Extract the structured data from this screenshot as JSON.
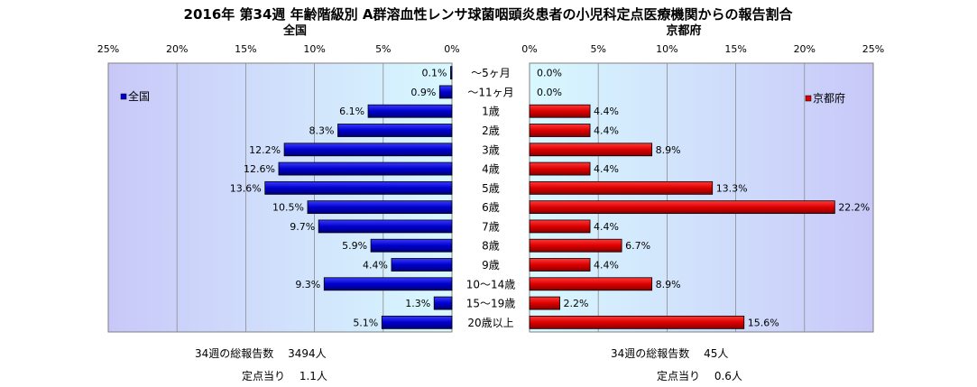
{
  "chart_data": {
    "type": "bar",
    "title": "2016年 第34週 年齢階級別 A群溶血性レンサ球菌咽頭炎患者の小児科定点医療機関からの報告割合",
    "categories": [
      "～5ヶ月",
      "～11ヶ月",
      "1歳",
      "2歳",
      "3歳",
      "4歳",
      "5歳",
      "6歳",
      "7歳",
      "8歳",
      "9歳",
      "10～14歳",
      "15～19歳",
      "20歳以上"
    ],
    "xlim": [
      0,
      25
    ],
    "ticks": [
      "0%",
      "5%",
      "10%",
      "15%",
      "20%",
      "25%"
    ],
    "grid": true,
    "colors": {
      "national": "#0000cc",
      "kyoto": "#dd0000"
    },
    "series": [
      {
        "name": "全国",
        "subtitle": "全国",
        "legend": "全国",
        "values": [
          0.1,
          0.9,
          6.1,
          8.3,
          12.2,
          12.6,
          13.6,
          10.5,
          9.7,
          5.9,
          4.4,
          9.3,
          1.3,
          5.1
        ],
        "labels": [
          "0.1%",
          "0.9%",
          "6.1%",
          "8.3%",
          "12.2%",
          "12.6%",
          "13.6%",
          "10.5%",
          "9.7%",
          "5.9%",
          "4.4%",
          "9.3%",
          "1.3%",
          "5.1%"
        ]
      },
      {
        "name": "京都府",
        "subtitle": "京都府",
        "legend": "京都府",
        "values": [
          0.0,
          0.0,
          4.4,
          4.4,
          8.9,
          4.4,
          13.3,
          22.2,
          4.4,
          6.7,
          4.4,
          8.9,
          2.2,
          15.6
        ],
        "labels": [
          "0.0%",
          "0.0%",
          "4.4%",
          "4.4%",
          "8.9%",
          "4.4%",
          "13.3%",
          "22.2%",
          "4.4%",
          "6.7%",
          "4.4%",
          "8.9%",
          "2.2%",
          "15.6%"
        ]
      }
    ]
  },
  "totals": {
    "national_reports": "34週の総報告数　 3494人",
    "national_per_site": "定点当り　 1.1人",
    "kyoto_reports": "34週の総報告数　 45人",
    "kyoto_per_site": "定点当り　 0.6人"
  }
}
